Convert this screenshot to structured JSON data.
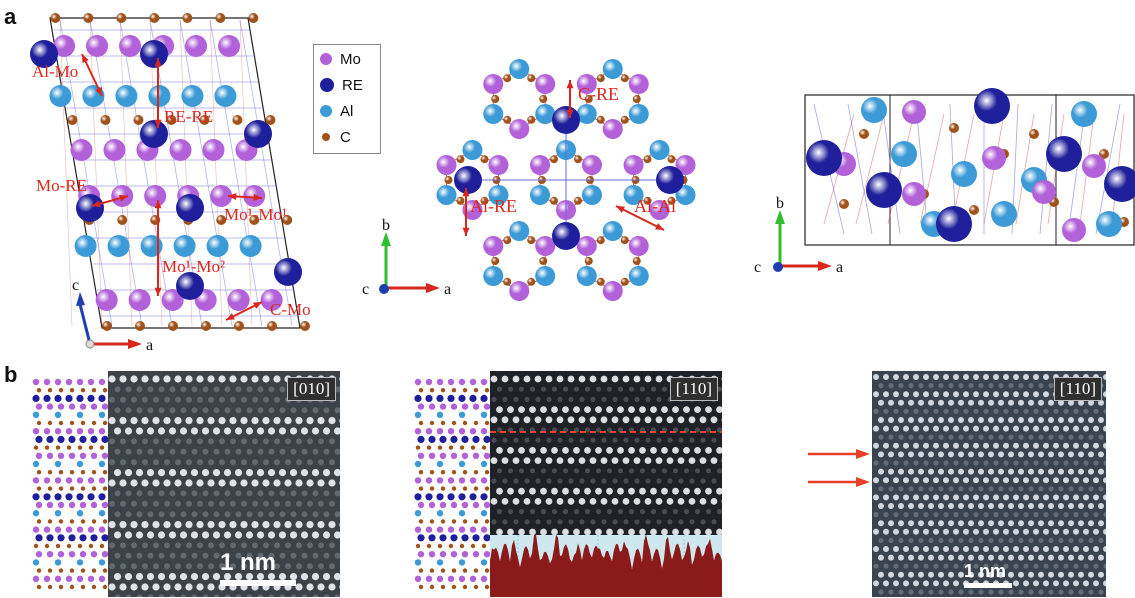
{
  "panel_a": {
    "letter": "a",
    "legend": [
      {
        "label": "Mo",
        "color": "#b261d8"
      },
      {
        "label": "RE",
        "color": "#1f1f9c"
      },
      {
        "label": "Al",
        "color": "#3c9ad6"
      },
      {
        "label": "C",
        "color": "#a0521a"
      }
    ],
    "left_labels": {
      "al_mo": "Al-Mo",
      "re_re": "RE-RE",
      "mo_re": "Mo-RE",
      "mo1_mo1": "Mo¹-Mo¹",
      "mo1_mo2": "Mo¹-Mo²",
      "c_mo": "C-Mo"
    },
    "center_labels": {
      "c_re": "C-RE",
      "al_re": "Al-RE",
      "al_al": "Al-Al"
    },
    "axes": {
      "left": {
        "up": "c",
        "right": "a"
      },
      "center": {
        "up": "b",
        "right": "a",
        "out": "c"
      },
      "right": {
        "up": "b",
        "right": "a",
        "out": "c"
      }
    }
  },
  "panel_b": {
    "letter": "b",
    "image1": {
      "tag": "[010]",
      "scale": "1 nm"
    },
    "image2": {
      "tag": "[110]"
    },
    "image3": {
      "tag": "[110]",
      "scale": "1 nm"
    }
  },
  "colors": {
    "mo": "#b261d8",
    "re": "#1f1f9c",
    "al": "#3c9ad6",
    "c": "#a0521a",
    "arrow": "#d8281e",
    "bond": "#6a6ad8"
  }
}
